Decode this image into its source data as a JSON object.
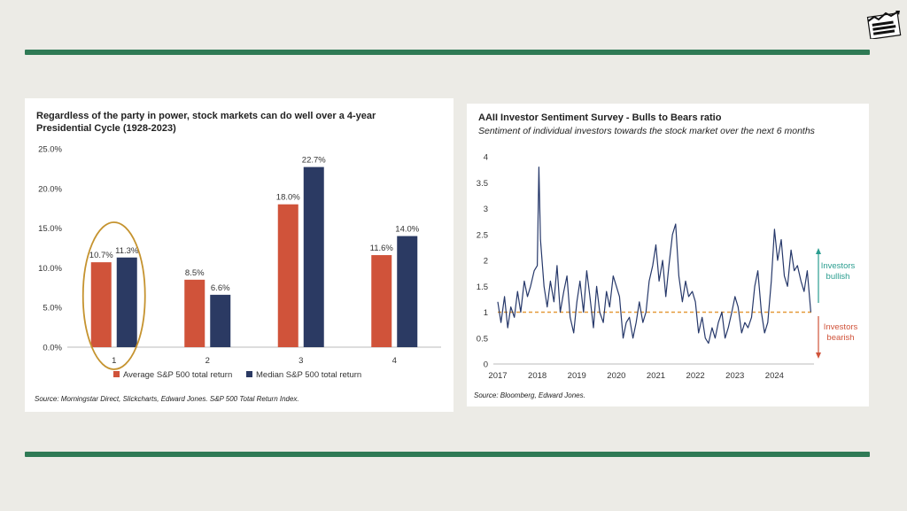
{
  "left_chart": {
    "title": "Regardless of the party in power, stock markets can do well over a 4-year Presidential  Cycle (1928-2023)",
    "source": "Source: Morningstar Direct, Slickcharts, Edward Jones. S&P 500 Total Return Index.",
    "colors": {
      "average": "#d0533a",
      "median": "#2b3a63",
      "highlight": "#c5932f"
    }
  },
  "right_chart": {
    "title": "AAII Investor Sentiment Survey - Bulls to Bears ratio",
    "subtitle": "Sentiment of individual investors towards the stock market over the next 6 months",
    "source": "Source: Bloomberg, Edward Jones.",
    "annotation_bullish": "Investors bullish",
    "annotation_bearish": "Investors bearish",
    "colors": {
      "line": "#26386a",
      "reference": "#e49a3a",
      "bullish": "#2a9d8f",
      "bearish": "#d0533a"
    }
  },
  "chart_data": [
    {
      "type": "bar",
      "title": "Regardless of the party in power, stock markets can do well over a 4-year Presidential  Cycle (1928-2023)",
      "categories": [
        "1",
        "2",
        "3",
        "4"
      ],
      "series": [
        {
          "name": "Average S&P 500 total return",
          "values": [
            10.7,
            8.5,
            18.0,
            11.6
          ],
          "labels": [
            "10.7%",
            "8.5%",
            "18.0%",
            "11.6%"
          ]
        },
        {
          "name": "Median S&P 500 total return",
          "values": [
            11.3,
            6.6,
            22.7,
            14.0
          ],
          "labels": [
            "11.3%",
            "6.6%",
            "22.7%",
            "14.0%"
          ]
        }
      ],
      "yticks": [
        "0.0%",
        "5.0%",
        "10.0%",
        "15.0%",
        "20.0%",
        "25.0%"
      ],
      "ylim": [
        0,
        25
      ],
      "legend": "bottom",
      "grid": false,
      "highlight_category": "1"
    },
    {
      "type": "line",
      "title": "AAII Investor Sentiment Survey - Bulls to Bears ratio",
      "x_ticks": [
        "2017",
        "2018",
        "2019",
        "2020",
        "2021",
        "2022",
        "2023",
        "2024"
      ],
      "yticks": [
        "0",
        "0.5",
        "1",
        "1.5",
        "2",
        "2.5",
        "3",
        "3.5",
        "4"
      ],
      "ylim": [
        0,
        4
      ],
      "xlim": [
        2017.0,
        2025.0
      ],
      "reference_line": 1,
      "grid": false,
      "series": [
        {
          "x": [
            2017.0,
            2017.08,
            2017.17,
            2017.25,
            2017.33,
            2017.42,
            2017.5,
            2017.58,
            2017.67,
            2017.75,
            2017.83,
            2017.92,
            2018.0,
            2018.04,
            2018.08,
            2018.17,
            2018.25,
            2018.33,
            2018.42,
            2018.5,
            2018.58,
            2018.67,
            2018.75,
            2018.83,
            2018.92,
            2019.0,
            2019.08,
            2019.17,
            2019.25,
            2019.33,
            2019.42,
            2019.5,
            2019.58,
            2019.67,
            2019.75,
            2019.83,
            2019.92,
            2020.0,
            2020.08,
            2020.17,
            2020.25,
            2020.33,
            2020.42,
            2020.5,
            2020.58,
            2020.67,
            2020.75,
            2020.83,
            2020.92,
            2021.0,
            2021.08,
            2021.17,
            2021.25,
            2021.33,
            2021.42,
            2021.5,
            2021.58,
            2021.67,
            2021.75,
            2021.83,
            2021.92,
            2022.0,
            2022.08,
            2022.17,
            2022.25,
            2022.33,
            2022.42,
            2022.5,
            2022.58,
            2022.67,
            2022.75,
            2022.83,
            2022.92,
            2023.0,
            2023.08,
            2023.17,
            2023.25,
            2023.33,
            2023.42,
            2023.5,
            2023.58,
            2023.67,
            2023.75,
            2023.83,
            2023.92,
            2024.0,
            2024.08,
            2024.17,
            2024.25,
            2024.33,
            2024.42,
            2024.5,
            2024.58,
            2024.67,
            2024.75,
            2024.83,
            2024.92
          ],
          "y": [
            1.2,
            0.8,
            1.3,
            0.7,
            1.1,
            0.9,
            1.4,
            1.0,
            1.6,
            1.3,
            1.5,
            1.8,
            1.9,
            3.8,
            2.4,
            1.5,
            1.1,
            1.6,
            1.2,
            1.9,
            1.0,
            1.4,
            1.7,
            0.9,
            0.6,
            1.2,
            1.6,
            1.0,
            1.8,
            1.3,
            0.7,
            1.5,
            1.0,
            0.8,
            1.4,
            1.1,
            1.7,
            1.5,
            1.3,
            0.5,
            0.8,
            0.9,
            0.5,
            0.8,
            1.2,
            0.8,
            1.0,
            1.6,
            1.9,
            2.3,
            1.6,
            2.0,
            1.3,
            1.9,
            2.5,
            2.7,
            1.7,
            1.2,
            1.6,
            1.3,
            1.4,
            1.2,
            0.6,
            0.9,
            0.5,
            0.4,
            0.7,
            0.5,
            0.8,
            1.0,
            0.5,
            0.7,
            1.0,
            1.3,
            1.1,
            0.6,
            0.8,
            0.7,
            0.9,
            1.5,
            1.8,
            1.0,
            0.6,
            0.8,
            1.6,
            2.6,
            2.0,
            2.4,
            1.7,
            1.5,
            2.2,
            1.8,
            1.9,
            1.6,
            1.4,
            1.8,
            1.0
          ]
        }
      ]
    }
  ]
}
